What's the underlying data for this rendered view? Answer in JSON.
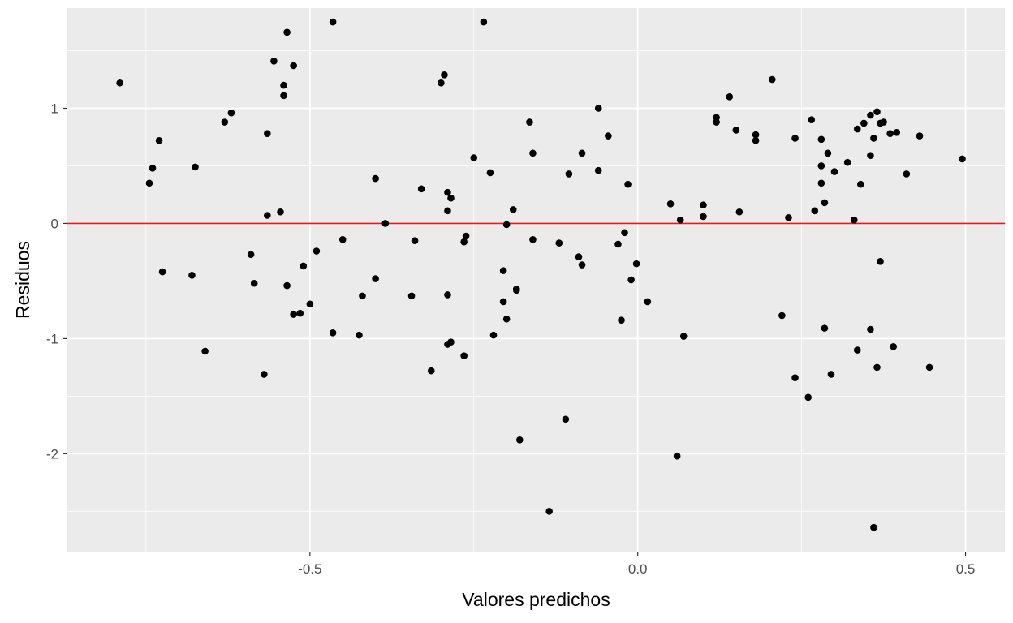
{
  "chart_data": {
    "type": "scatter",
    "title": "",
    "xlabel": "Valores predichos",
    "ylabel": "Residuos",
    "xlim": [
      -0.87,
      0.56
    ],
    "ylim": [
      -2.85,
      1.87
    ],
    "x_ticks": [
      {
        "value": -0.5,
        "label": "-0.5"
      },
      {
        "value": 0.0,
        "label": "0.0"
      },
      {
        "value": 0.5,
        "label": "0.5"
      }
    ],
    "y_ticks": [
      {
        "value": -2,
        "label": "-2"
      },
      {
        "value": -1,
        "label": "-1"
      },
      {
        "value": 0,
        "label": "0"
      },
      {
        "value": 1,
        "label": "1"
      }
    ],
    "grid": true,
    "reference_line": {
      "y": 0,
      "color": "#e41a1c"
    },
    "colors": {
      "panel": "#ebebeb",
      "grid": "#ffffff",
      "point": "#000000",
      "ref_line": "#e41a1c"
    },
    "series": [
      {
        "points": [
          [
            -0.79,
            1.22
          ],
          [
            -0.74,
            0.48
          ],
          [
            -0.745,
            0.35
          ],
          [
            -0.73,
            0.72
          ],
          [
            -0.725,
            -0.42
          ],
          [
            -0.68,
            -0.45
          ],
          [
            -0.675,
            0.49
          ],
          [
            -0.66,
            -1.11
          ],
          [
            -0.63,
            0.88
          ],
          [
            -0.62,
            0.96
          ],
          [
            -0.59,
            -0.27
          ],
          [
            -0.585,
            -0.52
          ],
          [
            -0.565,
            0.78
          ],
          [
            -0.57,
            -1.31
          ],
          [
            -0.565,
            0.07
          ],
          [
            -0.555,
            1.41
          ],
          [
            -0.545,
            0.1
          ],
          [
            -0.54,
            1.2
          ],
          [
            -0.54,
            1.11
          ],
          [
            -0.535,
            1.66
          ],
          [
            -0.535,
            -0.54
          ],
          [
            -0.525,
            1.37
          ],
          [
            -0.525,
            -0.79
          ],
          [
            -0.515,
            -0.78
          ],
          [
            -0.51,
            -0.37
          ],
          [
            -0.5,
            -0.7
          ],
          [
            -0.49,
            -0.24
          ],
          [
            -0.465,
            -0.95
          ],
          [
            -0.465,
            1.75
          ],
          [
            -0.45,
            -0.14
          ],
          [
            -0.425,
            -0.97
          ],
          [
            -0.42,
            -0.63
          ],
          [
            -0.4,
            -0.48
          ],
          [
            -0.4,
            0.39
          ],
          [
            -0.385,
            0.0
          ],
          [
            -0.345,
            -0.63
          ],
          [
            -0.34,
            -0.15
          ],
          [
            -0.33,
            0.3
          ],
          [
            -0.315,
            -1.28
          ],
          [
            -0.3,
            1.22
          ],
          [
            -0.295,
            1.29
          ],
          [
            -0.29,
            -0.62
          ],
          [
            -0.29,
            -1.05
          ],
          [
            -0.29,
            0.11
          ],
          [
            -0.29,
            0.27
          ],
          [
            -0.285,
            -1.03
          ],
          [
            -0.285,
            0.22
          ],
          [
            -0.265,
            -0.16
          ],
          [
            -0.265,
            -1.15
          ],
          [
            -0.262,
            -0.11
          ],
          [
            -0.25,
            0.57
          ],
          [
            -0.235,
            1.75
          ],
          [
            -0.225,
            0.44
          ],
          [
            -0.22,
            -0.97
          ],
          [
            -0.205,
            -0.68
          ],
          [
            -0.205,
            -0.41
          ],
          [
            -0.2,
            -0.83
          ],
          [
            -0.2,
            -0.01
          ],
          [
            -0.19,
            0.12
          ],
          [
            -0.185,
            -0.58
          ],
          [
            -0.185,
            -0.57
          ],
          [
            -0.18,
            -1.88
          ],
          [
            -0.165,
            0.88
          ],
          [
            -0.16,
            0.61
          ],
          [
            -0.16,
            -0.14
          ],
          [
            -0.135,
            -2.5
          ],
          [
            -0.12,
            -0.17
          ],
          [
            -0.11,
            -1.7
          ],
          [
            -0.105,
            0.43
          ],
          [
            -0.09,
            -0.29
          ],
          [
            -0.085,
            0.61
          ],
          [
            -0.085,
            -0.36
          ],
          [
            -0.06,
            0.46
          ],
          [
            -0.06,
            1.0
          ],
          [
            -0.045,
            0.76
          ],
          [
            -0.03,
            -0.18
          ],
          [
            -0.025,
            -0.84
          ],
          [
            -0.02,
            -0.08
          ],
          [
            -0.015,
            0.34
          ],
          [
            -0.01,
            -0.49
          ],
          [
            -0.002,
            -0.35
          ],
          [
            0.015,
            -0.68
          ],
          [
            0.05,
            0.17
          ],
          [
            0.06,
            -2.02
          ],
          [
            0.065,
            0.03
          ],
          [
            0.07,
            -0.98
          ],
          [
            0.1,
            0.16
          ],
          [
            0.1,
            0.06
          ],
          [
            0.12,
            0.88
          ],
          [
            0.12,
            0.92
          ],
          [
            0.14,
            1.1
          ],
          [
            0.15,
            0.81
          ],
          [
            0.155,
            0.1
          ],
          [
            0.18,
            0.72
          ],
          [
            0.18,
            0.77
          ],
          [
            0.205,
            1.25
          ],
          [
            0.22,
            -0.8
          ],
          [
            0.23,
            0.05
          ],
          [
            0.24,
            0.74
          ],
          [
            0.24,
            -1.34
          ],
          [
            0.26,
            -1.51
          ],
          [
            0.265,
            0.9
          ],
          [
            0.27,
            0.11
          ],
          [
            0.28,
            0.73
          ],
          [
            0.28,
            0.5
          ],
          [
            0.28,
            0.35
          ],
          [
            0.285,
            0.18
          ],
          [
            0.285,
            -0.91
          ],
          [
            0.29,
            0.61
          ],
          [
            0.295,
            -1.31
          ],
          [
            0.3,
            0.45
          ],
          [
            0.32,
            0.53
          ],
          [
            0.33,
            0.03
          ],
          [
            0.335,
            -1.1
          ],
          [
            0.335,
            0.82
          ],
          [
            0.34,
            0.34
          ],
          [
            0.345,
            0.87
          ],
          [
            0.355,
            0.94
          ],
          [
            0.355,
            0.59
          ],
          [
            0.355,
            -0.92
          ],
          [
            0.36,
            0.74
          ],
          [
            0.36,
            -2.64
          ],
          [
            0.365,
            0.97
          ],
          [
            0.365,
            -1.25
          ],
          [
            0.37,
            0.87
          ],
          [
            0.37,
            -0.33
          ],
          [
            0.375,
            0.88
          ],
          [
            0.385,
            0.78
          ],
          [
            0.39,
            -1.07
          ],
          [
            0.395,
            0.79
          ],
          [
            0.41,
            0.43
          ],
          [
            0.43,
            0.76
          ],
          [
            0.445,
            -1.25
          ],
          [
            0.495,
            0.56
          ]
        ]
      }
    ]
  }
}
